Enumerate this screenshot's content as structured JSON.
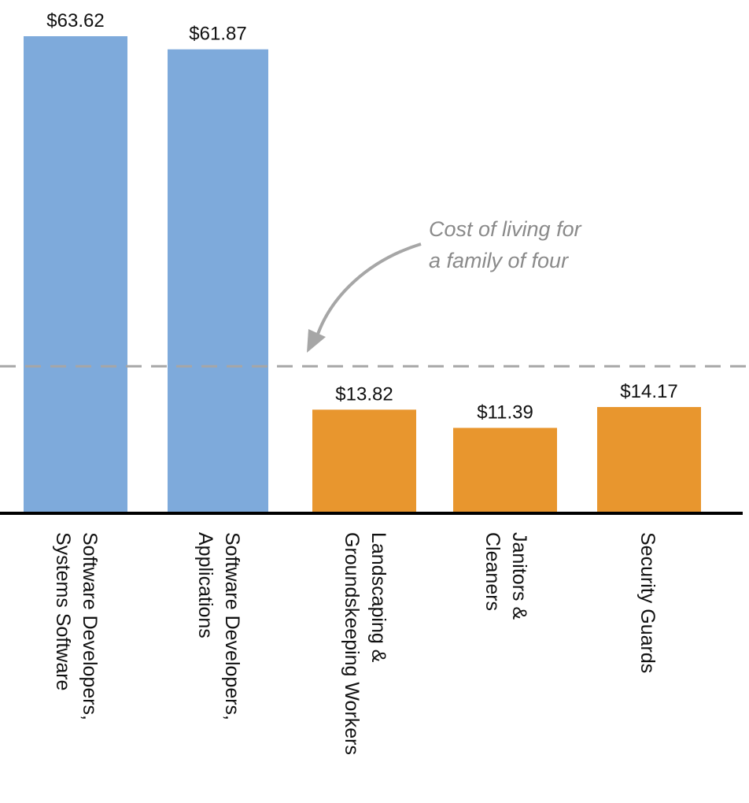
{
  "chart_data": {
    "type": "bar",
    "title": "",
    "xlabel": "",
    "ylabel": "",
    "ylim": [
      0,
      63.62
    ],
    "grid": false,
    "categories": [
      [
        "Software Developers,",
        "Systems Software"
      ],
      [
        "Software Developers,",
        "Applications"
      ],
      [
        "Landscaping &",
        "Groundskeeping Workers"
      ],
      [
        "Janitors &",
        "Cleaners"
      ],
      [
        "Security Guards"
      ]
    ],
    "values": [
      63.62,
      61.87,
      13.82,
      11.39,
      14.17
    ],
    "value_labels": [
      "$63.62",
      "$61.87",
      "$13.82",
      "$11.39",
      "$14.17"
    ],
    "colors": [
      "#7eaadb",
      "#7eaadb",
      "#e8962e",
      "#e8962e",
      "#e8962e"
    ],
    "reference_line": {
      "value": 19.6,
      "color": "#a6a6a6"
    },
    "annotation": {
      "lines": [
        "Cost of living for",
        "a family of four"
      ],
      "color": "#8a8a8a"
    }
  }
}
